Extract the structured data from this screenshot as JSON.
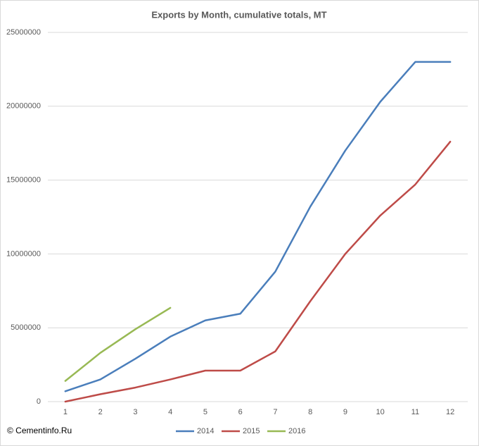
{
  "chart_data": {
    "type": "line",
    "title": "Exports by Month, cumulative totals, MT",
    "categories": [
      "1",
      "2",
      "3",
      "4",
      "5",
      "6",
      "7",
      "8",
      "9",
      "10",
      "11",
      "12"
    ],
    "series": [
      {
        "name": "2014",
        "color": "#4a7ebb",
        "values": [
          700000,
          1500000,
          2900000,
          4400000,
          5500000,
          5950000,
          8800000,
          13200000,
          17000000,
          20300000,
          23000000,
          23000000
        ]
      },
      {
        "name": "2015",
        "color": "#be4b48",
        "values": [
          0,
          500000,
          950000,
          1500000,
          2100000,
          2100000,
          3400000,
          6800000,
          10000000,
          12600000,
          14700000,
          17600000
        ]
      },
      {
        "name": "2016",
        "color": "#98b954",
        "values": [
          1400000,
          3300000,
          4900000,
          6350000,
          null,
          null,
          null,
          null,
          null,
          null,
          null,
          null
        ]
      }
    ],
    "ylim": [
      0,
      25000000
    ],
    "yticks": [
      0,
      5000000,
      10000000,
      15000000,
      20000000,
      25000000
    ],
    "grid": true,
    "legend": "bottom",
    "watermark": "© Cementinfo.Ru"
  }
}
